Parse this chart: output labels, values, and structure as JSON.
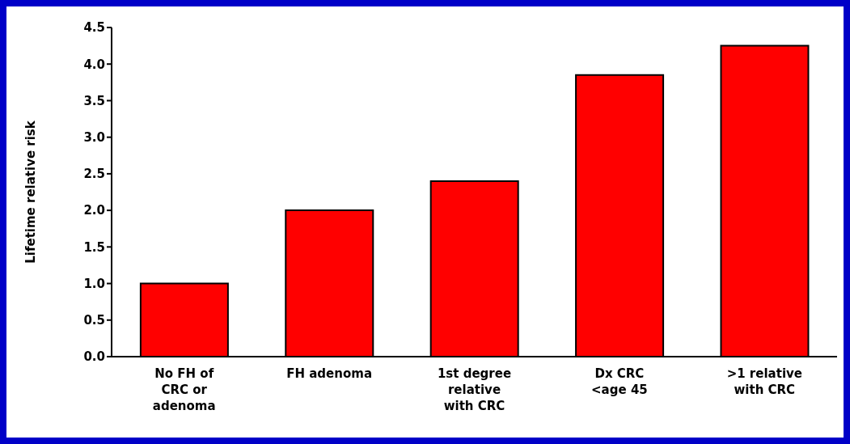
{
  "chart_data": {
    "type": "bar",
    "categories": [
      "No FH of\nCRC or\nadenoma",
      "FH adenoma",
      "1st degree\nrelative\nwith CRC",
      "Dx CRC\n<age 45",
      ">1 relative\nwith CRC"
    ],
    "values": [
      1.0,
      2.0,
      2.4,
      3.85,
      4.25
    ],
    "color": "#ff0000",
    "ylabel": "Lifetime relative risk",
    "ylim": [
      0,
      4.5
    ],
    "yticks": [
      {
        "value": 0,
        "label": "0.0"
      },
      0.5,
      {
        "value": 1,
        "label": "1.0"
      },
      1.5,
      {
        "value": 2,
        "label": "2.0"
      },
      2.5,
      {
        "value": 3,
        "label": "3.0"
      },
      3.5,
      {
        "value": 4,
        "label": "4.0"
      },
      4.5
    ],
    "grid": false,
    "legend": false
  }
}
